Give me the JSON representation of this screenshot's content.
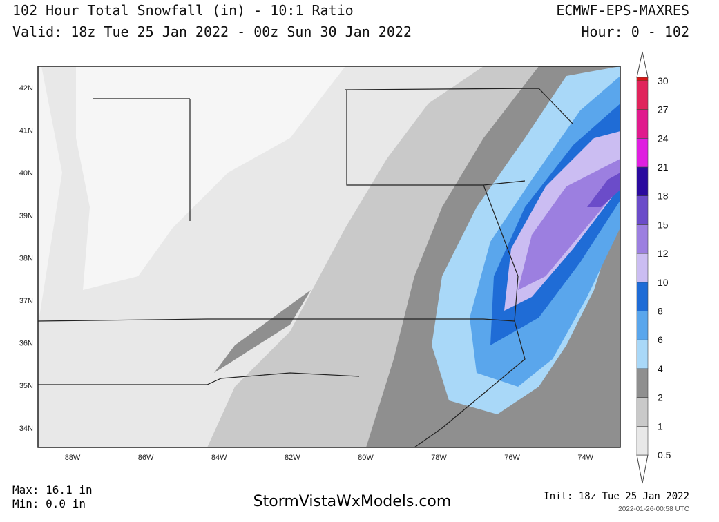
{
  "header": {
    "title": "102 Hour Total Snowfall (in) - 10:1 Ratio",
    "model": "ECMWF-EPS-MAXRES",
    "valid": "Valid: 18z Tue 25 Jan 2022 - 00z Sun 30 Jan 2022",
    "hour": "Hour: 0 - 102"
  },
  "map": {
    "lat_labels": [
      "42N",
      "41N",
      "40N",
      "39N",
      "38N",
      "37N",
      "36N",
      "35N",
      "34N"
    ],
    "lon_labels": [
      "88W",
      "86W",
      "84W",
      "82W",
      "80W",
      "78W",
      "76W",
      "74W"
    ]
  },
  "colorbar": {
    "levels": [
      {
        "label": "0.5",
        "color": "#e8e8e8"
      },
      {
        "label": "1",
        "color": "#c9c9c9"
      },
      {
        "label": "2",
        "color": "#8f8f8f"
      },
      {
        "label": "4",
        "color": "#a9d8f8"
      },
      {
        "label": "6",
        "color": "#5aa6ec"
      },
      {
        "label": "8",
        "color": "#1f6cd6"
      },
      {
        "label": "10",
        "color": "#cbbdf2"
      },
      {
        "label": "12",
        "color": "#9c7fe0"
      },
      {
        "label": "15",
        "color": "#6b4cc9"
      },
      {
        "label": "18",
        "color": "#2a0a9e"
      },
      {
        "label": "21",
        "color": "#df1fe0"
      },
      {
        "label": "24",
        "color": "#e01b8d"
      },
      {
        "label": "27",
        "color": "#e0245c"
      },
      {
        "label": "30",
        "color": "#d81818"
      }
    ]
  },
  "footer": {
    "max": "Max: 16.1 in",
    "min": "Min: 0.0 in",
    "site": "StormVistaWxModels.com",
    "init": "Init: 18z Tue 25 Jan 2022",
    "stamp": "2022-01-26-00:58 UTC"
  }
}
